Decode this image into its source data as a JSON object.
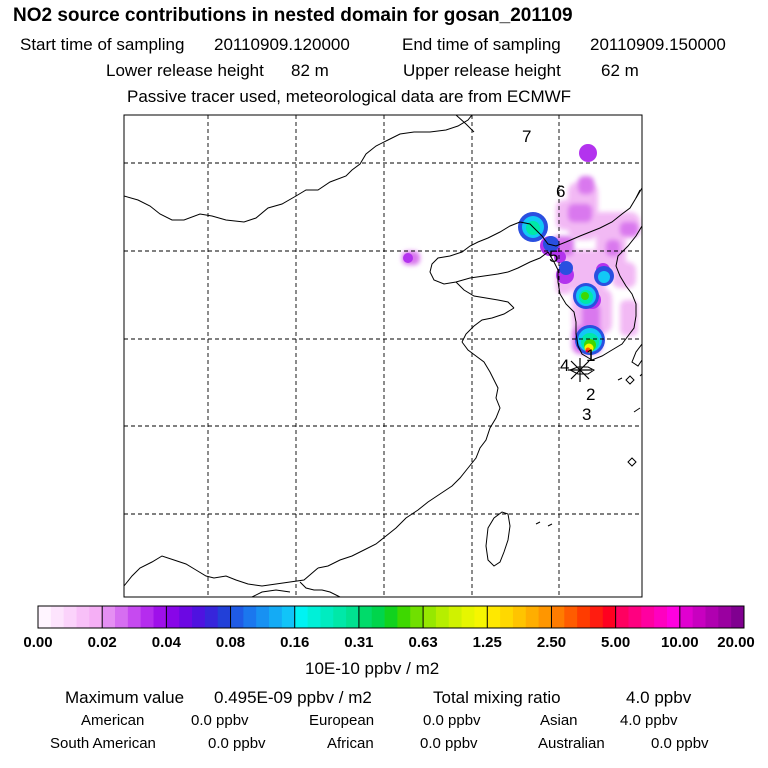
{
  "title": "NO2 source contributions in nested domain for gosan_201109",
  "sampling": {
    "start_label": "Start time of sampling",
    "start_value": "20110909.120000",
    "end_label": "End time of sampling",
    "end_value": "20110909.150000"
  },
  "release": {
    "lower_label": "Lower release height",
    "lower_value": "82 m",
    "upper_label": "Upper release height",
    "upper_value": "62 m"
  },
  "note": "Passive tracer used, meteorological data are from ECMWF",
  "map": {
    "site_labels": [
      "1",
      "2",
      "3",
      "4",
      "5",
      "6",
      "7"
    ],
    "marker": "receptor-star",
    "colors": {
      "coast": "#000000",
      "grid": "#000000"
    }
  },
  "colorbar": {
    "ticks": [
      "0.00",
      "0.02",
      "0.04",
      "0.08",
      "0.16",
      "0.31",
      "0.63",
      "1.25",
      "2.50",
      "5.00",
      "10.00",
      "20.00"
    ],
    "colors": [
      [
        "#fff5ff",
        "#fde4fd",
        "#fbd3fb",
        "#f8c0f8",
        "#f5aff5"
      ],
      [
        "#e58ff3",
        "#d66ef1",
        "#c64af0",
        "#b52cee",
        "#9f10ea"
      ],
      [
        "#8806e8",
        "#6c08e3",
        "#4f12e0",
        "#3725db",
        "#2240d8"
      ],
      [
        "#1f5be6",
        "#1b77ee",
        "#1891f2",
        "#14abf5",
        "#11c4f8"
      ],
      [
        "#00f3f3",
        "#00f0d8",
        "#00ecc0",
        "#00e8a8",
        "#00e290"
      ],
      [
        "#00db6a",
        "#00d54c",
        "#11d21e",
        "#3ed800",
        "#70e000"
      ],
      [
        "#96e800",
        "#b6ee00",
        "#d0f200",
        "#e6f600",
        "#f6f600"
      ],
      [
        "#ffe800",
        "#ffd800",
        "#ffc400",
        "#ffae00",
        "#ff9600"
      ],
      [
        "#ff7c00",
        "#ff5c00",
        "#ff3c00",
        "#ff1c10",
        "#ff0020"
      ],
      [
        "#ff0060",
        "#ff0080",
        "#ff00a0",
        "#ff00c0",
        "#ff00e0"
      ],
      [
        "#e000d0",
        "#c800c0",
        "#b000b0",
        "#9a00a0",
        "#800090"
      ]
    ],
    "units": "10E-10 ppbv / m2"
  },
  "stats": {
    "max_label": "Maximum value",
    "max_value": "0.495E-09 ppbv / m2",
    "total_label": "Total mixing ratio",
    "total_value": "4.0 ppbv",
    "regions": [
      {
        "name": "American",
        "value": "0.0 ppbv"
      },
      {
        "name": "European",
        "value": "0.0 ppbv"
      },
      {
        "name": "Asian",
        "value": "4.0 ppbv"
      },
      {
        "name": "South American",
        "value": "0.0 ppbv"
      },
      {
        "name": "African",
        "value": "0.0 ppbv"
      },
      {
        "name": "Australian",
        "value": "0.0 ppbv"
      }
    ]
  }
}
